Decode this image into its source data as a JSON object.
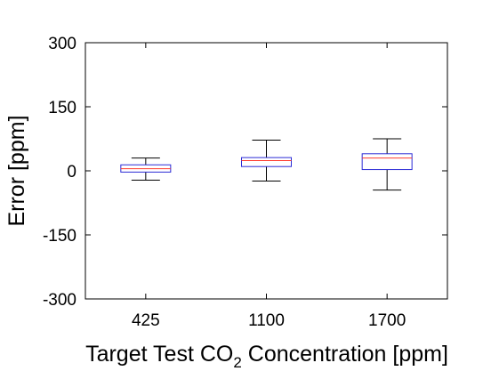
{
  "chart_data": {
    "type": "box",
    "title": "",
    "xlabel_parts": {
      "before": "Target Test CO",
      "sub": "2",
      "after": " Concentration [ppm]"
    },
    "ylabel": "Error [ppm]",
    "ylim": [
      -300,
      300
    ],
    "yticks": [
      -300,
      -150,
      0,
      150,
      300
    ],
    "ytick_labels": [
      "-300",
      "-150",
      "0",
      "150",
      "300"
    ],
    "grid": false,
    "legend": "none",
    "categories": [
      "425",
      "1100",
      "1700"
    ],
    "boxes": [
      {
        "category": "425",
        "whisker_low": -22,
        "q1": -3,
        "median": 5,
        "q3": 14,
        "whisker_high": 30
      },
      {
        "category": "1100",
        "whisker_low": -24,
        "q1": 10,
        "median": 24,
        "q3": 31,
        "whisker_high": 72
      },
      {
        "category": "1700",
        "whisker_low": -45,
        "q1": 3,
        "median": 30,
        "q3": 40,
        "whisker_high": 75
      }
    ],
    "colors": {
      "box": "#2b2bd6",
      "median": "#ff3a2e",
      "whisker": "#000000",
      "axis": "#000000"
    }
  }
}
